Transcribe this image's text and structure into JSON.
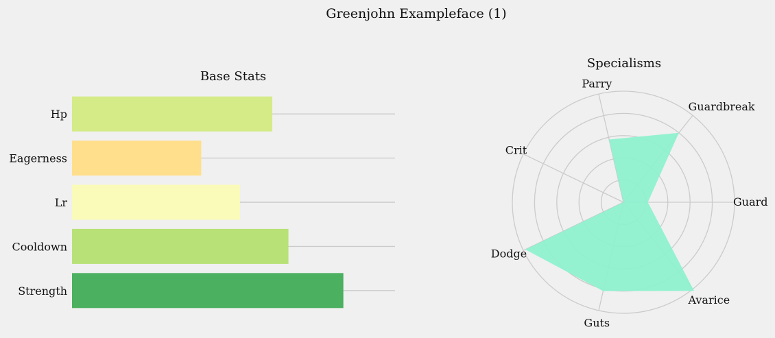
{
  "figure_title": "Greenjohn Exampleface (1)",
  "chart_data": [
    {
      "type": "bar",
      "orientation": "horizontal",
      "title": "Base Stats",
      "categories": [
        "Hp",
        "Eagerness",
        "Lr",
        "Cooldown",
        "Strength"
      ],
      "values": [
        62,
        40,
        52,
        67,
        84
      ],
      "xlim": [
        0,
        100
      ],
      "colors": [
        "#d4eb87",
        "#ffdf8c",
        "#fafbb8",
        "#b8e277",
        "#4bb05f"
      ],
      "grid": true,
      "xlabel": "",
      "ylabel": ""
    },
    {
      "type": "radar",
      "title": "Specialisms",
      "categories": [
        "Guard",
        "Guardbreak",
        "Parry",
        "Crit",
        "Dodge",
        "Guts",
        "Avarice"
      ],
      "values": [
        1.1,
        4.0,
        2.9,
        0.0,
        4.9,
        4.1,
        5.1
      ],
      "rlim": [
        0,
        5
      ],
      "rings": [
        1,
        2,
        3,
        4,
        5
      ],
      "fill_color": "#8ef1cf",
      "grid": true
    }
  ]
}
